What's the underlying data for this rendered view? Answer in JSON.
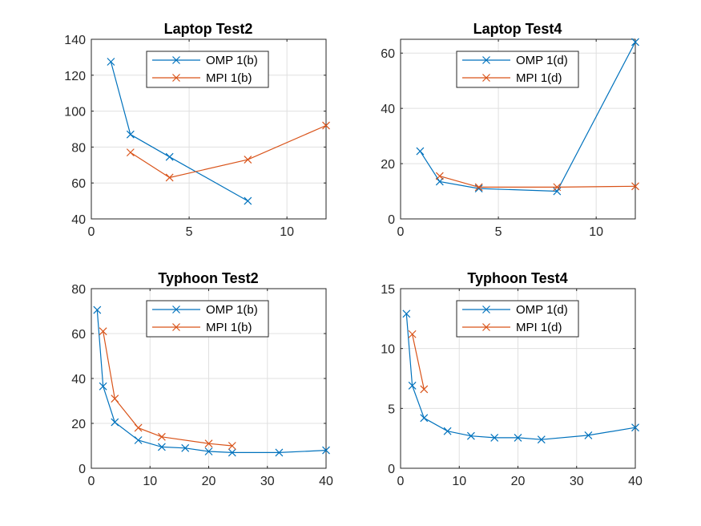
{
  "colors": {
    "series_1": "#0072BD",
    "series_2": "#D95319",
    "grid": "#e0e0e0",
    "axis": "#262626"
  },
  "chart_data": [
    {
      "type": "line",
      "title": "Laptop Test2",
      "xlabel": "",
      "ylabel": "",
      "xlim": [
        0,
        12
      ],
      "ylim": [
        40,
        140
      ],
      "xticks": [
        0,
        5,
        10
      ],
      "yticks": [
        40,
        60,
        80,
        100,
        120,
        140
      ],
      "grid": true,
      "legend": "top-center",
      "marker": "x",
      "series": [
        {
          "name": "OMP 1(b)",
          "x": [
            1,
            2,
            4,
            8
          ],
          "y": [
            127.5,
            87,
            74.5,
            50
          ]
        },
        {
          "name": "MPI 1(b)",
          "x": [
            2,
            4,
            8,
            12
          ],
          "y": [
            77,
            63,
            73,
            92
          ]
        }
      ]
    },
    {
      "type": "line",
      "title": "Laptop Test4",
      "xlabel": "",
      "ylabel": "",
      "xlim": [
        0,
        12
      ],
      "ylim": [
        0,
        65
      ],
      "xticks": [
        0,
        5,
        10
      ],
      "yticks": [
        0,
        20,
        40,
        60
      ],
      "grid": true,
      "legend": "top-center",
      "marker": "x",
      "series": [
        {
          "name": "OMP 1(d)",
          "x": [
            1,
            2,
            4,
            8,
            12
          ],
          "y": [
            24.5,
            13.5,
            11,
            10,
            64
          ]
        },
        {
          "name": "MPI 1(d)",
          "x": [
            2,
            4,
            8,
            12
          ],
          "y": [
            15.5,
            11.5,
            11.5,
            11.8
          ]
        }
      ]
    },
    {
      "type": "line",
      "title": "Typhoon Test2",
      "xlabel": "",
      "ylabel": "",
      "xlim": [
        0,
        40
      ],
      "ylim": [
        0,
        80
      ],
      "xticks": [
        0,
        10,
        20,
        30,
        40
      ],
      "yticks": [
        0,
        20,
        40,
        60,
        80
      ],
      "grid": true,
      "legend": "top-center",
      "marker": "x",
      "series": [
        {
          "name": "OMP 1(b)",
          "x": [
            1,
            2,
            4,
            8,
            12,
            16,
            20,
            24,
            32,
            40
          ],
          "y": [
            70.5,
            36.5,
            20.5,
            12.5,
            9.5,
            9,
            7.5,
            7,
            7,
            8
          ]
        },
        {
          "name": "MPI 1(b)",
          "x": [
            2,
            4,
            8,
            12,
            20,
            24
          ],
          "y": [
            61,
            31,
            18,
            14,
            11,
            10
          ]
        }
      ]
    },
    {
      "type": "line",
      "title": "Typhoon Test4",
      "xlabel": "",
      "ylabel": "",
      "xlim": [
        0,
        40
      ],
      "ylim": [
        0,
        15
      ],
      "xticks": [
        0,
        10,
        20,
        30,
        40
      ],
      "yticks": [
        0,
        5,
        10,
        15
      ],
      "grid": true,
      "legend": "top-center",
      "marker": "x",
      "series": [
        {
          "name": "OMP 1(d)",
          "x": [
            1,
            2,
            4,
            8,
            12,
            16,
            20,
            24,
            32,
            40
          ],
          "y": [
            12.9,
            6.9,
            4.2,
            3.1,
            2.7,
            2.55,
            2.55,
            2.4,
            2.75,
            3.4
          ]
        },
        {
          "name": "MPI 1(d)",
          "x": [
            2,
            4
          ],
          "y": [
            11.2,
            6.6
          ]
        }
      ]
    }
  ]
}
